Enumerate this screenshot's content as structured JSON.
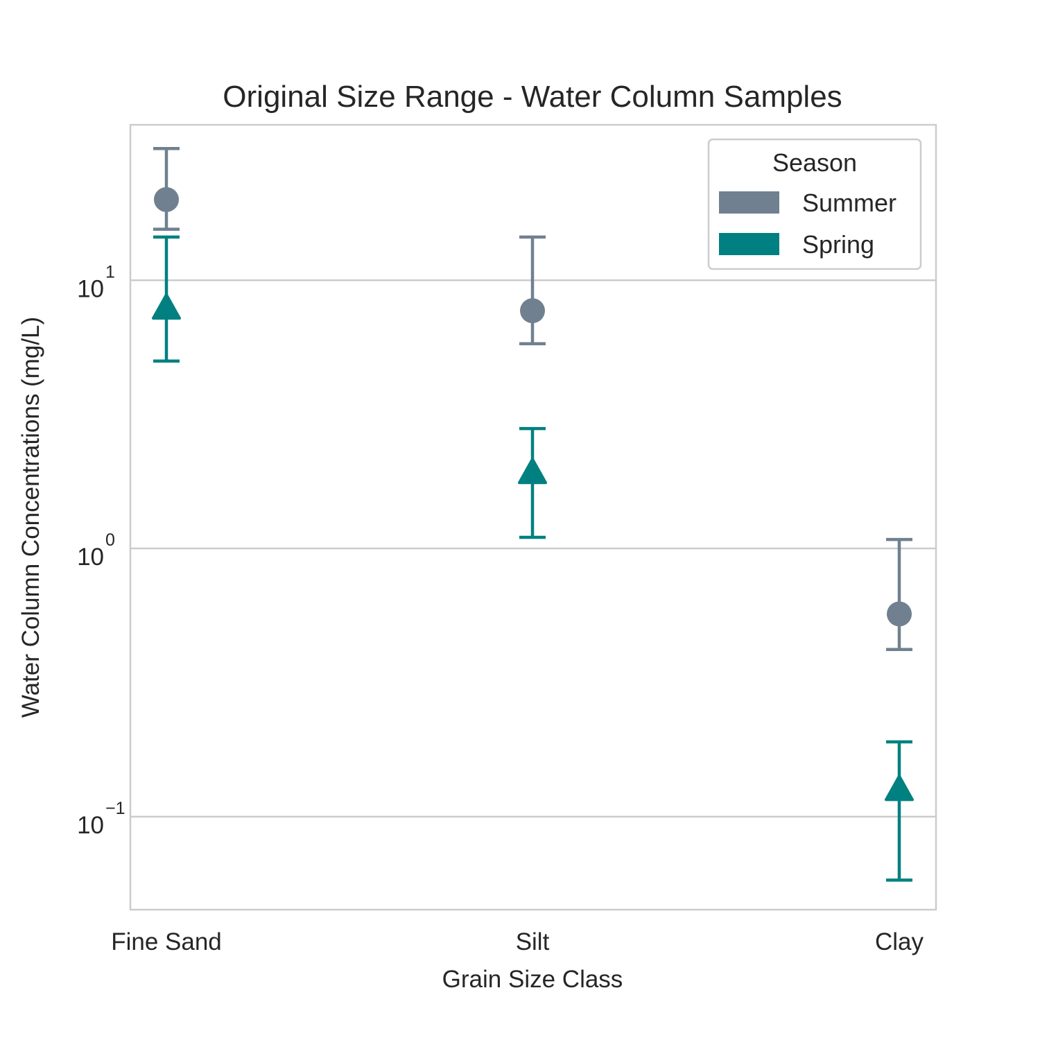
{
  "chart_data": {
    "type": "scatter",
    "title": "Original Size Range - Water Column Samples",
    "xlabel": "Grain Size Class",
    "ylabel": "Water Column Concentrations (mg/L)",
    "yscale": "log",
    "ylim": [
      0.045,
      38
    ],
    "categories": [
      "Fine Sand",
      "Silt",
      "Clay"
    ],
    "yticks": [
      {
        "base": "10",
        "exp": "−1",
        "value": 0.1
      },
      {
        "base": "10",
        "exp": "0",
        "value": 1
      },
      {
        "base": "10",
        "exp": "1",
        "value": 10
      }
    ],
    "grid": true,
    "legend": {
      "title": "Season",
      "placement": "top-right"
    },
    "series": [
      {
        "name": "Summer",
        "color": "#708090",
        "marker": "circle",
        "values": [
          20,
          7.7,
          0.57
        ],
        "error_low": [
          15.5,
          5.8,
          0.42
        ],
        "error_high": [
          31,
          14.5,
          1.08
        ]
      },
      {
        "name": "Spring",
        "color": "#008080",
        "marker": "triangle",
        "values": [
          7.8,
          1.9,
          0.125
        ],
        "error_low": [
          5.0,
          1.1,
          0.058
        ],
        "error_high": [
          14.5,
          2.8,
          0.19
        ]
      }
    ]
  }
}
